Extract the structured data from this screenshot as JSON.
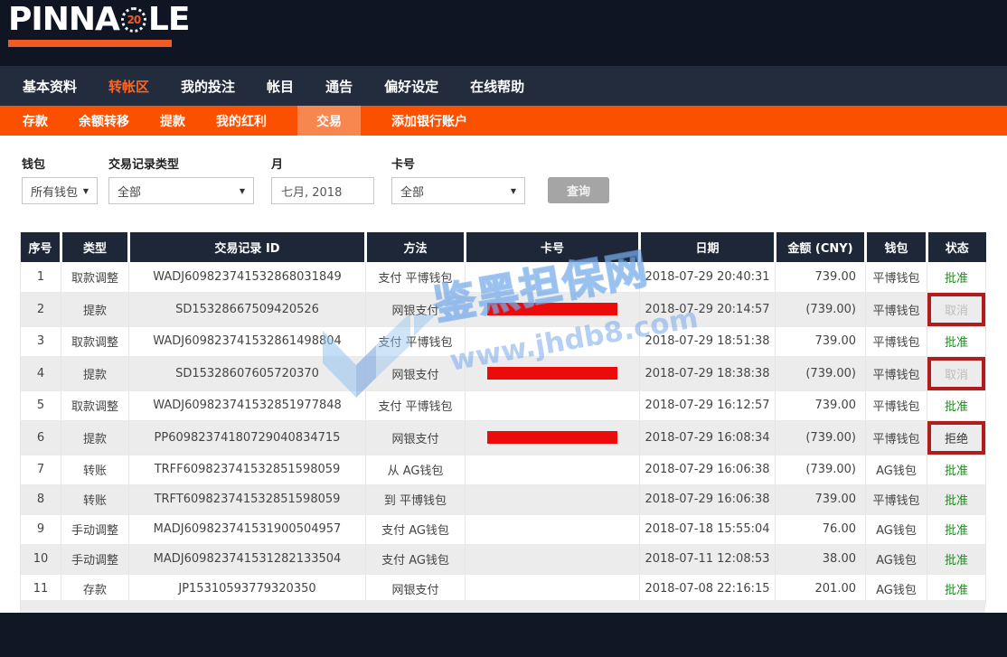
{
  "brand": {
    "name_left": "PINNA",
    "badge": "20",
    "name_right": "LE"
  },
  "nav": {
    "items": [
      {
        "label": "基本资料",
        "active": false
      },
      {
        "label": "转帐区",
        "active": true
      },
      {
        "label": "我的投注",
        "active": false
      },
      {
        "label": "帐目",
        "active": false
      },
      {
        "label": "通告",
        "active": false
      },
      {
        "label": "偏好设定",
        "active": false
      },
      {
        "label": "在线帮助",
        "active": false
      }
    ]
  },
  "subnav": {
    "items": [
      {
        "label": "存款",
        "active": false
      },
      {
        "label": "余额转移",
        "active": false
      },
      {
        "label": "提款",
        "active": false
      },
      {
        "label": "我的红利",
        "active": false
      },
      {
        "label": "交易",
        "active": true
      },
      {
        "label": "添加银行账户",
        "active": false
      }
    ]
  },
  "filters": {
    "wallet": {
      "label": "钱包",
      "value": "所有钱包"
    },
    "record_type": {
      "label": "交易记录类型",
      "value": "全部"
    },
    "month": {
      "label": "月",
      "value": "七月, 2018"
    },
    "card": {
      "label": "卡号",
      "value": "全部"
    },
    "search_button": "查询"
  },
  "table": {
    "headers": [
      "序号",
      "类型",
      "交易记录 ID",
      "方法",
      "卡号",
      "日期",
      "金额 (CNY)",
      "钱包",
      "状态"
    ],
    "rows": [
      {
        "no": "1",
        "type": "取款调整",
        "type_style": "default",
        "id": "WADJ609823741532868031849",
        "method": "支付 平博钱包",
        "card_redacted": false,
        "date": "2018-07-29 20:40:31",
        "amount": "739.00",
        "negative": false,
        "wallet": "平博钱包",
        "status": "批准",
        "status_style": "approved",
        "highlight_box": false
      },
      {
        "no": "2",
        "type": "提款",
        "type_style": "withdraw",
        "id": "SD15328667509420526",
        "method": "网银支付",
        "card_redacted": true,
        "date": "2018-07-29 20:14:57",
        "amount": "(739.00)",
        "negative": true,
        "wallet": "平博钱包",
        "status": "取消",
        "status_style": "cancelled",
        "highlight_box": true
      },
      {
        "no": "3",
        "type": "取款调整",
        "type_style": "default",
        "id": "WADJ609823741532861498804",
        "method": "支付 平博钱包",
        "card_redacted": false,
        "date": "2018-07-29 18:51:38",
        "amount": "739.00",
        "negative": false,
        "wallet": "平博钱包",
        "status": "批准",
        "status_style": "approved",
        "highlight_box": false
      },
      {
        "no": "4",
        "type": "提款",
        "type_style": "withdraw",
        "id": "SD15328607605720370",
        "method": "网银支付",
        "card_redacted": true,
        "date": "2018-07-29 18:38:38",
        "amount": "(739.00)",
        "negative": true,
        "wallet": "平博钱包",
        "status": "取消",
        "status_style": "cancelled",
        "highlight_box": true
      },
      {
        "no": "5",
        "type": "取款调整",
        "type_style": "default",
        "id": "WADJ609823741532851977848",
        "method": "支付 平博钱包",
        "card_redacted": false,
        "date": "2018-07-29 16:12:57",
        "amount": "739.00",
        "negative": false,
        "wallet": "平博钱包",
        "status": "批准",
        "status_style": "approved",
        "highlight_box": false
      },
      {
        "no": "6",
        "type": "提款",
        "type_style": "withdraw",
        "id": "PP60982374180729040834715",
        "method": "网银支付",
        "card_redacted": true,
        "date": "2018-07-29 16:08:34",
        "amount": "(739.00)",
        "negative": true,
        "wallet": "平博钱包",
        "status": "拒绝",
        "status_style": "rejected",
        "highlight_box": true
      },
      {
        "no": "7",
        "type": "转账",
        "type_style": "default",
        "id": "TRFF609823741532851598059",
        "method": "从 AG钱包",
        "card_redacted": false,
        "date": "2018-07-29 16:06:38",
        "amount": "(739.00)",
        "negative": true,
        "wallet": "AG钱包",
        "status": "批准",
        "status_style": "approved",
        "highlight_box": false
      },
      {
        "no": "8",
        "type": "转账",
        "type_style": "default",
        "id": "TRFT609823741532851598059",
        "method": "到 平博钱包",
        "card_redacted": false,
        "date": "2018-07-29 16:06:38",
        "amount": "739.00",
        "negative": false,
        "wallet": "平博钱包",
        "status": "批准",
        "status_style": "approved",
        "highlight_box": false
      },
      {
        "no": "9",
        "type": "手动调整",
        "type_style": "default",
        "id": "MADJ609823741531900504957",
        "method": "支付 AG钱包",
        "card_redacted": false,
        "date": "2018-07-18 15:55:04",
        "amount": "76.00",
        "negative": false,
        "wallet": "AG钱包",
        "status": "批准",
        "status_style": "approved",
        "highlight_box": false
      },
      {
        "no": "10",
        "type": "手动调整",
        "type_style": "default",
        "id": "MADJ609823741531282133504",
        "method": "支付 AG钱包",
        "card_redacted": false,
        "date": "2018-07-11 12:08:53",
        "amount": "38.00",
        "negative": false,
        "wallet": "AG钱包",
        "status": "批准",
        "status_style": "approved",
        "highlight_box": false
      },
      {
        "no": "11",
        "type": "存款",
        "type_style": "deposit",
        "id": "JP15310593779320350",
        "method": "网银支付",
        "card_redacted": false,
        "date": "2018-07-08 22:16:15",
        "amount": "201.00",
        "negative": false,
        "wallet": "AG钱包",
        "status": "批准",
        "status_style": "approved",
        "highlight_box": false
      }
    ]
  },
  "watermark": {
    "title": "鉴黑担保网",
    "url": "www.jhdb8.com"
  },
  "colors": {
    "accent_orange": "#fb5000",
    "logo_orange": "#f15a22",
    "topbar_bg": "#0f1523",
    "navbar_bg": "#232c3d",
    "nav_active_orange": "#f6682a",
    "status_green": "#1e8a1e",
    "negative_red": "#e25f5f",
    "withdraw_tan": "#cfa25e",
    "deposit_green": "#3a9e3a",
    "redact_bar_red": "#ec0b0b",
    "highlight_box_red": "#b01d1d",
    "watermark_blue": "#7fb0e6"
  }
}
